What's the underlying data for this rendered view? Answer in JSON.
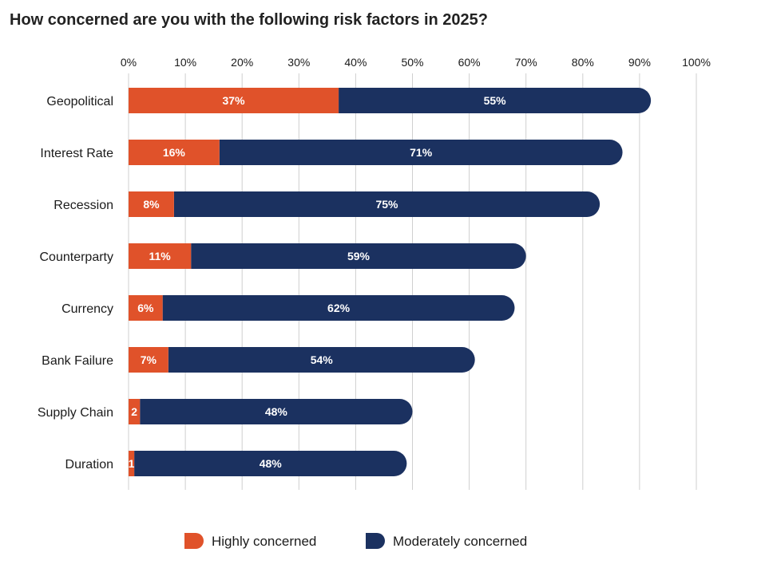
{
  "chart_data": {
    "type": "bar",
    "orientation": "horizontal",
    "stacked": true,
    "title": "How concerned are you with the following risk factors in 2025?",
    "categories": [
      "Geopolitical",
      "Interest Rate",
      "Recession",
      "Counterparty",
      "Currency",
      "Bank Failure",
      "Supply Chain",
      "Duration"
    ],
    "series": [
      {
        "name": "Highly concerned",
        "values": [
          37,
          16,
          8,
          11,
          6,
          7,
          2,
          1
        ],
        "labels": [
          "37%",
          "16%",
          "8%",
          "11%",
          "6%",
          "7%",
          "2",
          "1"
        ],
        "color": "#e0522a"
      },
      {
        "name": "Moderately concerned",
        "values": [
          55,
          71,
          75,
          59,
          62,
          54,
          48,
          48
        ],
        "labels": [
          "55%",
          "71%",
          "75%",
          "59%",
          "62%",
          "54%",
          "48%",
          "48%"
        ],
        "color": "#1b3160"
      }
    ],
    "x_ticks": [
      "0%",
      "10%",
      "20%",
      "30%",
      "40%",
      "50%",
      "60%",
      "70%",
      "80%",
      "90%",
      "100%"
    ],
    "xlim": [
      0,
      100
    ],
    "grid": "vertical",
    "legend_position": "bottom"
  }
}
